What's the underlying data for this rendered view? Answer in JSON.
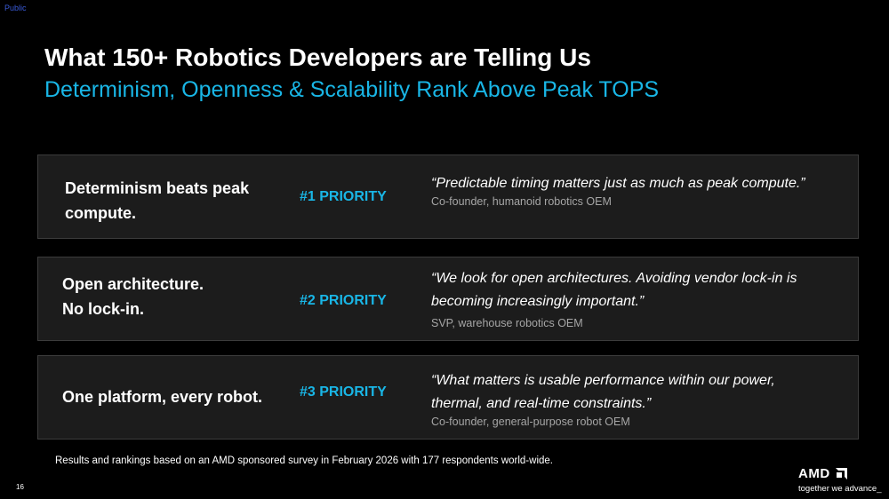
{
  "classification": "Public",
  "title": "What 150+ Robotics Developers are Telling Us",
  "subtitle": "Determinism, Openness & Scalability Rank Above Peak TOPS",
  "cards": [
    {
      "claim_lines": [
        "Determinism beats peak",
        "compute."
      ],
      "priority": "#1 PRIORITY",
      "quote_lines": [
        "“Predictable timing matters just as much as peak compute.”"
      ],
      "source": "Co-founder, humanoid robotics OEM"
    },
    {
      "claim_lines": [
        "Open architecture.",
        "No lock-in."
      ],
      "priority": "#2 PRIORITY",
      "quote_lines": [
        "“We look for open architectures. Avoiding vendor lock-in is",
        "becoming increasingly important.”"
      ],
      "source": "SVP, warehouse robotics OEM"
    },
    {
      "claim_lines": [
        "One platform, every robot."
      ],
      "priority": "#3 PRIORITY",
      "quote_lines": [
        "“What matters is usable performance within our power,",
        "thermal, and real-time constraints.”"
      ],
      "source": "Co-founder, general-purpose robot OEM"
    }
  ],
  "footnote": "Results and rankings based on an AMD sponsored survey in February 2026 with 177 respondents world-wide.",
  "page_number": "16",
  "logo": {
    "wordmark": "AMD",
    "tagline": "together we advance_"
  },
  "colors": {
    "background": "#000000",
    "accent": "#19b6e6",
    "card": "#1c1c1c",
    "card_border": "#3c3c3c"
  }
}
